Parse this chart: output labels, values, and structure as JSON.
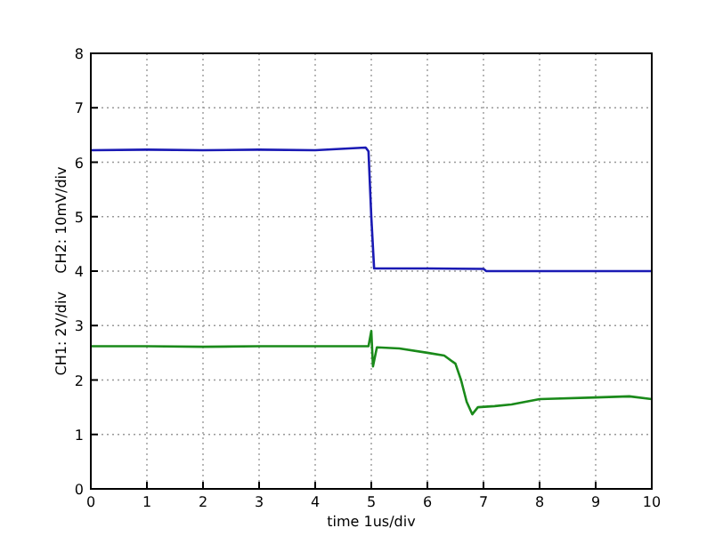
{
  "chart_data": {
    "type": "line",
    "xlabel": "time 1us/div",
    "ylabel": "CH1: 2V/div    CH2: 10mV/div",
    "xlim": [
      0,
      10
    ],
    "ylim": [
      0,
      8
    ],
    "xticks": [
      0,
      1,
      2,
      3,
      4,
      5,
      6,
      7,
      8,
      9,
      10
    ],
    "yticks": [
      0,
      1,
      2,
      3,
      4,
      5,
      6,
      7,
      8
    ],
    "grid": true,
    "line_style": "solid",
    "marker": "none",
    "series": [
      {
        "color": "#1a1ab4",
        "x": [
          0,
          1,
          2,
          3,
          4,
          4.9,
          4.95,
          5.0,
          5.05,
          5.1,
          6,
          7,
          7.05,
          8,
          9,
          10
        ],
        "values": [
          6.22,
          6.23,
          6.22,
          6.23,
          6.22,
          6.27,
          6.2,
          5.0,
          4.05,
          4.05,
          4.05,
          4.04,
          4.0,
          4.0,
          4.0,
          4.0
        ]
      },
      {
        "color": "#1a8a1a",
        "x": [
          0,
          1,
          2,
          3,
          4,
          4.95,
          5.0,
          5.03,
          5.1,
          5.5,
          6.0,
          6.3,
          6.5,
          6.6,
          6.7,
          6.8,
          6.9,
          7.2,
          7.5,
          8,
          9,
          9.6,
          10
        ],
        "values": [
          2.62,
          2.62,
          2.61,
          2.62,
          2.62,
          2.62,
          2.9,
          2.25,
          2.6,
          2.58,
          2.5,
          2.45,
          2.3,
          2.0,
          1.6,
          1.37,
          1.5,
          1.52,
          1.55,
          1.65,
          1.68,
          1.7,
          1.65
        ]
      }
    ]
  }
}
